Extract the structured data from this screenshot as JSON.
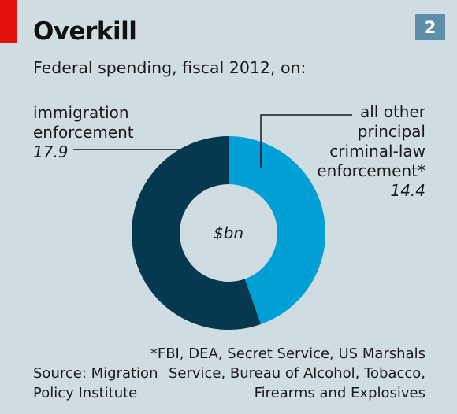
{
  "header": {
    "title": "Overkill",
    "badge": "2",
    "subtitle": "Federal spending, fiscal 2012, on:"
  },
  "chart_data": {
    "type": "pie",
    "donut": true,
    "unit_label": "$bn",
    "slices": [
      {
        "label_lines": [
          "immigration",
          "enforcement"
        ],
        "value": 17.9,
        "value_label": "17.9",
        "color": "#06394f"
      },
      {
        "label_lines": [
          "all other",
          "principal",
          "criminal-law",
          "enforcement*"
        ],
        "value": 14.4,
        "value_label": "14.4",
        "color": "#00a0d6"
      }
    ]
  },
  "footer": {
    "source_lines": [
      "Source: Migration",
      "Policy Institute"
    ],
    "footnote_lines": [
      "*FBI, DEA, Secret Service, US Marshals",
      "Service, Bureau of Alcohol, Tobacco,",
      "Firearms and Explosives"
    ]
  },
  "colors": {
    "background": "#cfdde3",
    "accent_red": "#e3120b",
    "badge": "#5e8fa8",
    "leader_line": "#1a1a1a"
  }
}
